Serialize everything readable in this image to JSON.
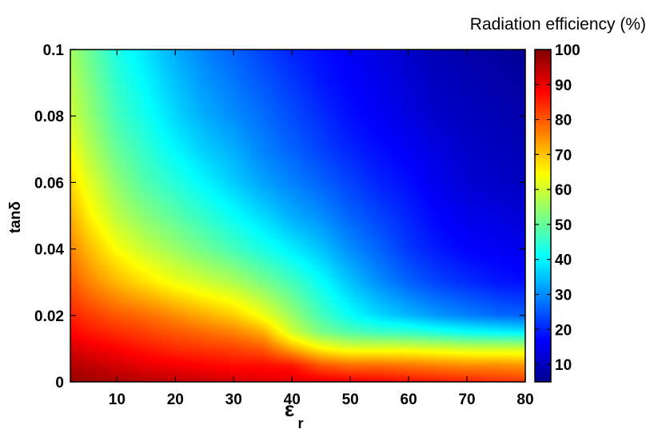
{
  "chart_data": {
    "type": "heatmap",
    "title": "",
    "xlabel": "ε",
    "xlabel_subscript": "r",
    "ylabel": "tanδ",
    "colorbar_title": "Radiation efficiency (%)",
    "xlim": [
      2,
      80
    ],
    "ylim": [
      0,
      0.1
    ],
    "clim": [
      5,
      100
    ],
    "colormap": "jet",
    "x_ticks": [
      "10",
      "20",
      "30",
      "40",
      "50",
      "60",
      "70",
      "80"
    ],
    "x_tick_values": [
      10,
      20,
      30,
      40,
      50,
      60,
      70,
      80
    ],
    "y_ticks": [
      "0",
      "0.02",
      "0.04",
      "0.06",
      "0.08",
      "0.1"
    ],
    "y_tick_values": [
      0,
      0.02,
      0.04,
      0.06,
      0.08,
      0.1
    ],
    "colorbar_ticks": [
      "10",
      "20",
      "30",
      "40",
      "50",
      "60",
      "70",
      "80",
      "90",
      "100"
    ],
    "colorbar_tick_values": [
      10,
      20,
      30,
      40,
      50,
      60,
      70,
      80,
      90,
      100
    ],
    "x": [
      2,
      5,
      10,
      15,
      20,
      25,
      30,
      35,
      40,
      45,
      50,
      55,
      60,
      65,
      70,
      75,
      80
    ],
    "y": [
      0,
      0.005,
      0.01,
      0.015,
      0.02,
      0.03,
      0.04,
      0.05,
      0.06,
      0.07,
      0.08,
      0.09,
      0.1
    ],
    "z": [
      [
        98,
        97,
        96,
        95,
        94,
        93,
        92,
        91,
        91,
        90,
        89,
        88,
        87,
        86,
        85,
        84,
        83
      ],
      [
        95,
        94,
        92,
        90,
        89,
        88,
        87,
        87,
        86,
        80,
        78,
        78,
        77,
        76,
        75,
        75,
        74
      ],
      [
        92,
        90,
        88,
        86,
        84,
        83,
        82,
        80,
        72,
        65,
        62,
        62,
        62,
        61,
        60,
        60,
        60
      ],
      [
        88,
        86,
        84,
        82,
        80,
        78,
        76,
        72,
        60,
        52,
        48,
        46,
        45,
        43,
        41,
        40,
        39
      ],
      [
        85,
        83,
        80,
        78,
        75,
        72,
        69,
        63,
        55,
        47,
        41,
        37,
        34,
        31,
        29,
        27,
        26
      ],
      [
        80,
        76,
        71,
        67,
        63,
        60,
        57,
        52,
        47,
        41,
        35,
        30,
        26,
        23,
        21,
        19,
        18
      ],
      [
        76,
        71,
        64,
        59,
        55,
        51,
        47,
        43,
        39,
        35,
        30,
        26,
        22,
        19,
        17,
        16,
        15
      ],
      [
        72,
        66,
        58,
        53,
        49,
        45,
        41,
        37,
        33,
        30,
        26,
        23,
        20,
        17,
        15,
        14,
        13
      ],
      [
        68,
        62,
        54,
        48,
        44,
        40,
        36,
        32,
        29,
        26,
        23,
        20,
        18,
        15,
        13,
        12,
        11
      ],
      [
        64,
        58,
        50,
        45,
        40,
        36,
        33,
        29,
        26,
        23,
        20,
        18,
        16,
        14,
        12,
        11,
        10
      ],
      [
        60,
        55,
        47,
        42,
        37,
        33,
        30,
        27,
        24,
        21,
        18,
        16,
        14,
        12,
        11,
        10,
        9
      ],
      [
        58,
        53,
        45,
        40,
        35,
        31,
        28,
        25,
        22,
        19,
        17,
        15,
        13,
        11,
        10,
        9,
        8
      ],
      [
        56,
        51,
        43,
        38,
        33,
        29,
        26,
        23,
        20,
        18,
        16,
        14,
        12,
        10,
        9,
        8,
        7
      ]
    ]
  }
}
